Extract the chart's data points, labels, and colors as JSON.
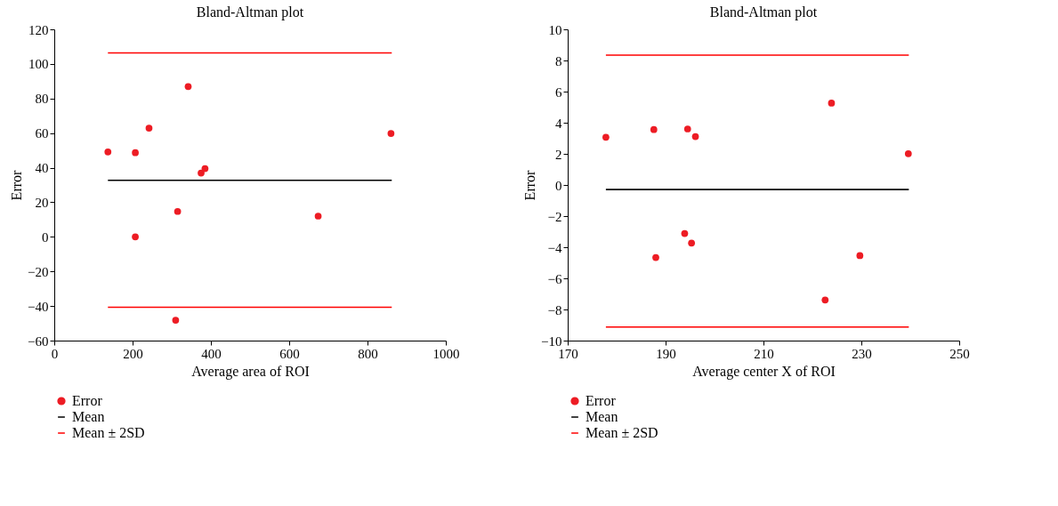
{
  "chart_data": [
    {
      "type": "scatter",
      "title": "Bland-Altman plot",
      "xlabel": "Average area of ROI",
      "ylabel": "Error",
      "xlim": [
        0,
        1000
      ],
      "xticks": [
        0,
        200,
        400,
        600,
        800,
        1000
      ],
      "ylim": [
        -60,
        120
      ],
      "yticks": [
        -60,
        -40,
        -20,
        0,
        20,
        40,
        60,
        80,
        100,
        120
      ],
      "grid": false,
      "legend": "bottom",
      "series": [
        {
          "name": "Error",
          "marker": "circle",
          "color": "#ed1c24",
          "x": [
            137,
            207,
            207,
            242,
            342,
            315,
            375,
            385,
            310,
            674,
            860
          ],
          "values": [
            49.1,
            48.7,
            0,
            62.9,
            86.9,
            14.7,
            36.9,
            39.5,
            -48.2,
            12,
            59.8
          ]
        },
        {
          "name": "Mean",
          "type": "line",
          "color": "#000000",
          "x": [
            137,
            862
          ],
          "values": [
            32.7,
            32.7
          ]
        },
        {
          "name": "Mean ± 2SD",
          "type": "line",
          "color": "#ff0000",
          "x": [
            137,
            862
          ],
          "values": [
            106.4,
            106.4
          ]
        },
        {
          "type": "line",
          "color": "#ff0000",
          "x": [
            137,
            862
          ],
          "values": [
            -40.7,
            -40.7
          ]
        }
      ]
    },
    {
      "type": "scatter",
      "title": "Bland-Altman plot",
      "xlabel": "Average center X of ROI",
      "ylabel": "Error",
      "xlim": [
        170,
        250
      ],
      "xticks": [
        170,
        190,
        210,
        230,
        250
      ],
      "ylim": [
        -10,
        10
      ],
      "yticks": [
        -10,
        -8,
        -6,
        -4,
        -2,
        0,
        2,
        4,
        6,
        8,
        10
      ],
      "grid": false,
      "legend": "bottom",
      "series": [
        {
          "name": "Error",
          "marker": "circle",
          "color": "#ed1c24",
          "x": [
            177.8,
            187.6,
            194.5,
            196.1,
            223.9,
            239.6,
            193.9,
            195.3,
            188.0,
            229.7,
            222.6
          ],
          "values": [
            3.07,
            3.56,
            3.6,
            3.11,
            5.26,
            2.01,
            -3.12,
            -3.73,
            -4.66,
            -4.54,
            -7.39
          ]
        },
        {
          "name": "Mean",
          "type": "line",
          "color": "#000000",
          "x": [
            177.8,
            239.7
          ],
          "values": [
            -0.29,
            -0.29
          ]
        },
        {
          "name": "Mean ± 2SD",
          "type": "line",
          "color": "#ff0000",
          "x": [
            177.8,
            239.7
          ],
          "values": [
            8.34,
            8.34
          ]
        },
        {
          "type": "line",
          "color": "#ff0000",
          "x": [
            177.8,
            239.7
          ],
          "values": [
            -9.13,
            -9.13
          ]
        }
      ]
    }
  ]
}
